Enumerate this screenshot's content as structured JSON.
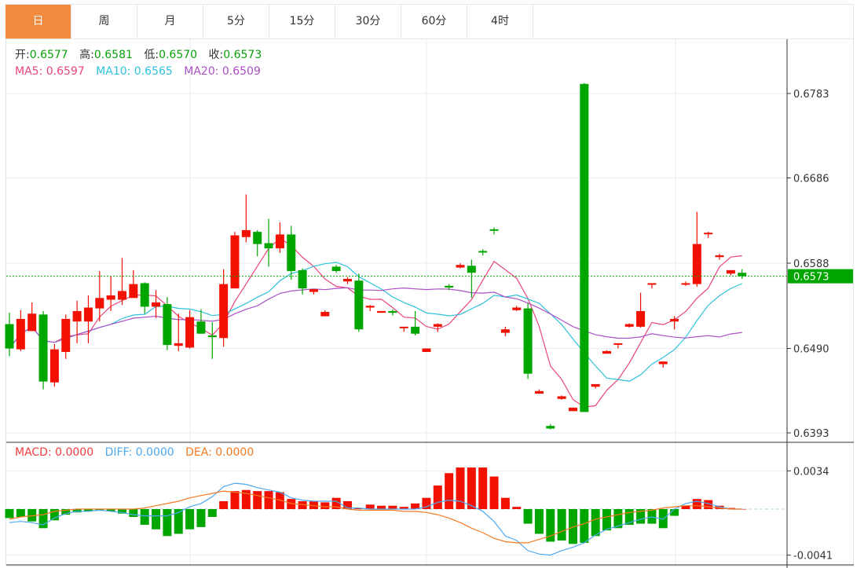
{
  "tabs": [
    {
      "label": "日",
      "active": true
    },
    {
      "label": "周"
    },
    {
      "label": "月"
    },
    {
      "label": "5分"
    },
    {
      "label": "15分"
    },
    {
      "label": "30分"
    },
    {
      "label": "60分"
    },
    {
      "label": "4时"
    }
  ],
  "ohlc_info": {
    "open_label": "开:",
    "open": "0.6577",
    "high_label": "高:",
    "high": "0.6581",
    "low_label": "低:",
    "low": "0.6570",
    "close_label": "收:",
    "close": "0.6573"
  },
  "ma_info": {
    "ma5": "MA5: 0.6597",
    "ma10": "MA10: 0.6565",
    "ma20": "MA20: 0.6509"
  },
  "macd_info": {
    "macd": "MACD: 0.0000",
    "diff": "DIFF: 0.0000",
    "dea": "DEA: 0.0000"
  },
  "colors": {
    "up": "#f21000",
    "down": "#00a600",
    "ma5": "#e8457c",
    "ma10": "#2dc1dc",
    "ma20": "#ac4fc6",
    "diff": "#4da8f0",
    "dea": "#f57a22",
    "tab_active": "#f38b3f",
    "current": "#00a600"
  },
  "price_axis": {
    "ticks": [
      0.6783,
      0.6686,
      0.6588,
      0.649,
      0.6393
    ],
    "labels": [
      "0.6783",
      "0.6686",
      "0.6588",
      "0.6490",
      "0.6393"
    ],
    "current_price": "0.6573"
  },
  "macd_axis": {
    "labels": [
      "0.0034",
      "-0.0041"
    ],
    "ticks": [
      0.0034,
      -0.0041
    ]
  },
  "chart_data": {
    "type": "candlestick",
    "columns": [
      "open",
      "high",
      "low",
      "close"
    ],
    "ohlc": [
      [
        0.6518,
        0.6531,
        0.6481,
        0.649
      ],
      [
        0.6489,
        0.6534,
        0.6487,
        0.6524
      ],
      [
        0.651,
        0.6543,
        0.651,
        0.653
      ],
      [
        0.6529,
        0.6533,
        0.6443,
        0.6452
      ],
      [
        0.6451,
        0.6495,
        0.6446,
        0.6489
      ],
      [
        0.6486,
        0.6529,
        0.6478,
        0.6524
      ],
      [
        0.6521,
        0.6545,
        0.6496,
        0.6533
      ],
      [
        0.6521,
        0.6551,
        0.6496,
        0.6537
      ],
      [
        0.6536,
        0.6579,
        0.6521,
        0.6548
      ],
      [
        0.6546,
        0.6573,
        0.6533,
        0.6551
      ],
      [
        0.6546,
        0.6594,
        0.654,
        0.6556
      ],
      [
        0.6548,
        0.658,
        0.6548,
        0.6564
      ],
      [
        0.6565,
        0.6566,
        0.653,
        0.6538
      ],
      [
        0.6538,
        0.6557,
        0.6525,
        0.6543
      ],
      [
        0.6541,
        0.6549,
        0.6488,
        0.6494
      ],
      [
        0.6493,
        0.653,
        0.6487,
        0.6496
      ],
      [
        0.6491,
        0.6534,
        0.649,
        0.6526
      ],
      [
        0.6521,
        0.6535,
        0.6507,
        0.6507
      ],
      [
        0.6505,
        0.652,
        0.6478,
        0.6503
      ],
      [
        0.6502,
        0.6581,
        0.6492,
        0.6564
      ],
      [
        0.6559,
        0.6624,
        0.6559,
        0.662
      ],
      [
        0.6618,
        0.6667,
        0.6612,
        0.6626
      ],
      [
        0.6624,
        0.6626,
        0.6596,
        0.661
      ],
      [
        0.6611,
        0.6639,
        0.6584,
        0.6605
      ],
      [
        0.6605,
        0.6635,
        0.66,
        0.6621
      ],
      [
        0.6621,
        0.6631,
        0.6569,
        0.6579
      ],
      [
        0.658,
        0.6582,
        0.6552,
        0.6559
      ],
      [
        0.6555,
        0.6558,
        0.6552,
        0.6558
      ],
      [
        0.6527,
        0.6534,
        0.6527,
        0.6532
      ],
      [
        0.6584,
        0.6586,
        0.6577,
        0.6579
      ],
      [
        0.6567,
        0.6572,
        0.6564,
        0.657
      ],
      [
        0.6568,
        0.6576,
        0.6509,
        0.6512
      ],
      [
        0.6537,
        0.654,
        0.6533,
        0.6539
      ],
      [
        0.6531,
        0.6533,
        0.6531,
        0.6533
      ],
      [
        0.6533,
        0.6535,
        0.6528,
        0.6531
      ],
      [
        0.6514,
        0.6515,
        0.6509,
        0.6515
      ],
      [
        0.6515,
        0.6533,
        0.6505,
        0.6507
      ],
      [
        0.6486,
        0.649,
        0.6486,
        0.649
      ],
      [
        0.6515,
        0.6519,
        0.6509,
        0.6518
      ],
      [
        0.6562,
        0.6564,
        0.6557,
        0.656
      ],
      [
        0.6583,
        0.6588,
        0.6582,
        0.6586
      ],
      [
        0.6585,
        0.6592,
        0.6548,
        0.6577
      ],
      [
        0.6602,
        0.6604,
        0.6597,
        0.6601
      ],
      [
        0.6627,
        0.6629,
        0.6621,
        0.6626
      ],
      [
        0.6508,
        0.6515,
        0.6504,
        0.6512
      ],
      [
        0.6534,
        0.6539,
        0.6533,
        0.6537
      ],
      [
        0.6536,
        0.6542,
        0.6455,
        0.6461
      ],
      [
        0.6438,
        0.6443,
        0.6438,
        0.6441
      ],
      [
        0.6401,
        0.6403,
        0.6397,
        0.6398
      ],
      [
        0.6432,
        0.6436,
        0.6431,
        0.6435
      ],
      [
        0.6418,
        0.6422,
        0.6418,
        0.6422
      ],
      [
        0.6794,
        0.6795,
        0.6417,
        0.6417
      ],
      [
        0.6446,
        0.6449,
        0.6444,
        0.6449
      ],
      [
        0.6484,
        0.6488,
        0.6484,
        0.6487
      ],
      [
        0.6495,
        0.6496,
        0.649,
        0.6496
      ],
      [
        0.6515,
        0.6519,
        0.6514,
        0.6518
      ],
      [
        0.6515,
        0.6554,
        0.6514,
        0.6533
      ],
      [
        0.6565,
        0.6565,
        0.6559,
        0.6565
      ],
      [
        0.6472,
        0.6475,
        0.6468,
        0.6475
      ],
      [
        0.6521,
        0.6527,
        0.6512,
        0.6524
      ],
      [
        0.6564,
        0.6567,
        0.6562,
        0.6565
      ],
      [
        0.6564,
        0.6647,
        0.6561,
        0.661
      ],
      [
        0.6622,
        0.6624,
        0.6617,
        0.6623
      ],
      [
        0.6595,
        0.6599,
        0.6592,
        0.6597
      ],
      [
        0.6576,
        0.658,
        0.6574,
        0.658
      ],
      [
        0.6577,
        0.6581,
        0.657,
        0.6573
      ]
    ],
    "ma_periods": [
      5,
      10,
      20
    ],
    "price_range": [
      0.6393,
      0.6783
    ],
    "macd": [
      -0.0008,
      -0.0007,
      -0.0011,
      -0.0017,
      -0.001,
      -0.0005,
      -0.0003,
      -0.0002,
      -0.0001,
      -0.0002,
      -0.0004,
      -0.0007,
      -0.0014,
      -0.0018,
      -0.0024,
      -0.0022,
      -0.0018,
      -0.0016,
      -0.0007,
      0.0007,
      0.0016,
      0.0017,
      0.0016,
      0.0016,
      0.0015,
      0.0009,
      0.0007,
      0.0007,
      0.0006,
      0.001,
      0.0007,
      0.0001,
      0.0004,
      0.0003,
      0.0003,
      0.0002,
      0.0005,
      0.001,
      0.0021,
      0.0032,
      0.0037,
      0.0037,
      0.0037,
      0.0029,
      0.001,
      0.0002,
      -0.0013,
      -0.0022,
      -0.0029,
      -0.0028,
      -0.0031,
      -0.003,
      -0.0024,
      -0.0019,
      -0.0017,
      -0.0014,
      -0.0013,
      -0.0013,
      -0.0017,
      -0.0006,
      0.0003,
      0.0009,
      0.0008,
      0.0003,
      0.0001,
      0.0
    ],
    "diff": [
      -0.0012,
      -0.0011,
      -0.0012,
      -0.0014,
      -0.0008,
      -0.0004,
      -0.0002,
      -0.0002,
      -0.0001,
      -0.0002,
      -0.0003,
      -0.0005,
      -0.0006,
      -0.0006,
      -0.0006,
      -0.0003,
      0.0002,
      0.0005,
      0.0011,
      0.002,
      0.0023,
      0.0022,
      0.0019,
      0.0017,
      0.0015,
      0.001,
      0.0008,
      0.0007,
      0.0007,
      0.0007,
      0.0001,
      0.0001,
      0.0,
      0.0,
      0.0,
      0.0,
      0.0,
      0.0002,
      0.0006,
      0.0008,
      0.0007,
      0.0003,
      -0.0002,
      -0.0011,
      -0.0024,
      -0.0028,
      -0.0037,
      -0.004,
      -0.0041,
      -0.0037,
      -0.0034,
      -0.003,
      -0.0023,
      -0.0018,
      -0.0015,
      -0.0012,
      -0.0009,
      -0.0007,
      -0.0009,
      0.0,
      0.0005,
      0.0007,
      0.0005,
      0.0002,
      0.0,
      0.0
    ],
    "dea": [
      -0.0009,
      -0.0007,
      -0.0006,
      -0.0005,
      -0.0002,
      -0.0001,
      0.0,
      0.0,
      0.0,
      0.0,
      0.0,
      0.0,
      0.0001,
      0.0003,
      0.0005,
      0.0007,
      0.001,
      0.0012,
      0.0014,
      0.0016,
      0.0015,
      0.0014,
      0.0012,
      0.001,
      0.0008,
      0.0005,
      0.0004,
      0.0003,
      0.0002,
      0.0002,
      0.0,
      -0.0001,
      -0.0001,
      -0.0001,
      -0.0001,
      -0.0002,
      -0.0002,
      -0.0003,
      -0.0005,
      -0.0008,
      -0.0012,
      -0.0017,
      -0.0021,
      -0.0026,
      -0.0029,
      -0.003,
      -0.003,
      -0.0027,
      -0.0024,
      -0.002,
      -0.0016,
      -0.0013,
      -0.0009,
      -0.0007,
      -0.0005,
      -0.0003,
      -0.0002,
      -0.0001,
      0.0001,
      0.0002,
      0.0003,
      0.0003,
      0.0002,
      0.0001,
      0.0,
      0.0
    ]
  }
}
